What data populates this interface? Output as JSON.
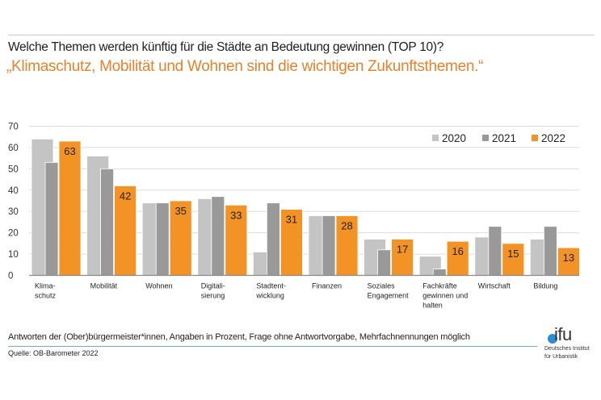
{
  "header": {
    "title": "Welche Themen werden künftig für die Städte an Bedeutung gewinnen (TOP 10)?",
    "subtitle": "„Klimaschutz, Mobilität und Wohnen sind die wichtigen Zukunftsthemen.“"
  },
  "footer": {
    "note": "Antworten der (Ober)bürgermeister*innen, Angaben in Prozent, Frage ohne Antwortvorgabe, Mehrfachnennungen möglich",
    "source": "Quelle: OB-Barometer 2022"
  },
  "logo": {
    "name": "difu",
    "name_rest": "ifu",
    "line1": "Deutsches Institut",
    "line2": "für Urbanistik"
  },
  "chart_data": {
    "type": "bar",
    "title": "Welche Themen werden künftig für die Städte an Bedeutung gewinnen (TOP 10)?",
    "xlabel": "",
    "ylabel": "",
    "ylim": [
      0,
      70
    ],
    "yticks": [
      0,
      10,
      20,
      30,
      40,
      50,
      60,
      70
    ],
    "grid": true,
    "legend_position": "top-right",
    "categories": [
      [
        "Klima-",
        "schutz"
      ],
      [
        "Mobilität"
      ],
      [
        "Wohnen"
      ],
      [
        "Digitali-",
        "sierung"
      ],
      [
        "Stadtent-",
        "wicklung"
      ],
      [
        "Finanzen"
      ],
      [
        "Soziales",
        "Engagement"
      ],
      [
        "Fachkräfte",
        "gewinnen und",
        "halten"
      ],
      [
        "Wirtschaft"
      ],
      [
        "Bildung"
      ]
    ],
    "series": [
      {
        "name": "2020",
        "color": "#c4c4c4",
        "values": [
          64,
          56,
          34,
          36,
          11,
          28,
          17,
          9,
          18,
          17
        ],
        "labeled": false
      },
      {
        "name": "2021",
        "color": "#999999",
        "values": [
          53,
          50,
          34,
          37,
          34,
          28,
          12,
          3,
          23,
          23
        ],
        "labeled": false
      },
      {
        "name": "2022",
        "color": "#f39325",
        "values": [
          63,
          42,
          35,
          33,
          31,
          28,
          17,
          16,
          15,
          13
        ],
        "labeled": true
      }
    ]
  }
}
